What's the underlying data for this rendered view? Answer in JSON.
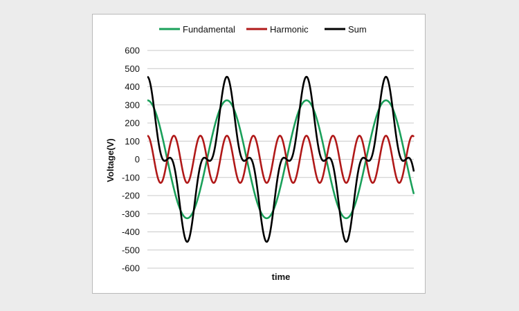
{
  "chart_data": {
    "type": "line",
    "title": "",
    "xlabel": "time",
    "ylabel": "Voltage(V)",
    "ylim": [
      -600,
      600
    ],
    "yticks": [
      600,
      500,
      400,
      300,
      200,
      100,
      0,
      -100,
      -200,
      -300,
      -400,
      -500,
      -600
    ],
    "grid": "horizontal",
    "legend_position": "top",
    "x_range_cycles": [
      0,
      3.35
    ],
    "series": [
      {
        "name": "Fundamental",
        "color": "#1aa05a",
        "amplitude": 325,
        "harmonic_order": 1,
        "phase": "cosine",
        "peak": 325,
        "trough": -325
      },
      {
        "name": "Harmonic",
        "color": "#b01818",
        "amplitude": 130,
        "harmonic_order": 3,
        "phase": "cosine",
        "peak": 130,
        "trough": -130
      },
      {
        "name": "Sum",
        "color": "#000000",
        "amplitude": null,
        "composition": "Fundamental + Harmonic",
        "peak": 455,
        "trough": -455
      }
    ]
  }
}
